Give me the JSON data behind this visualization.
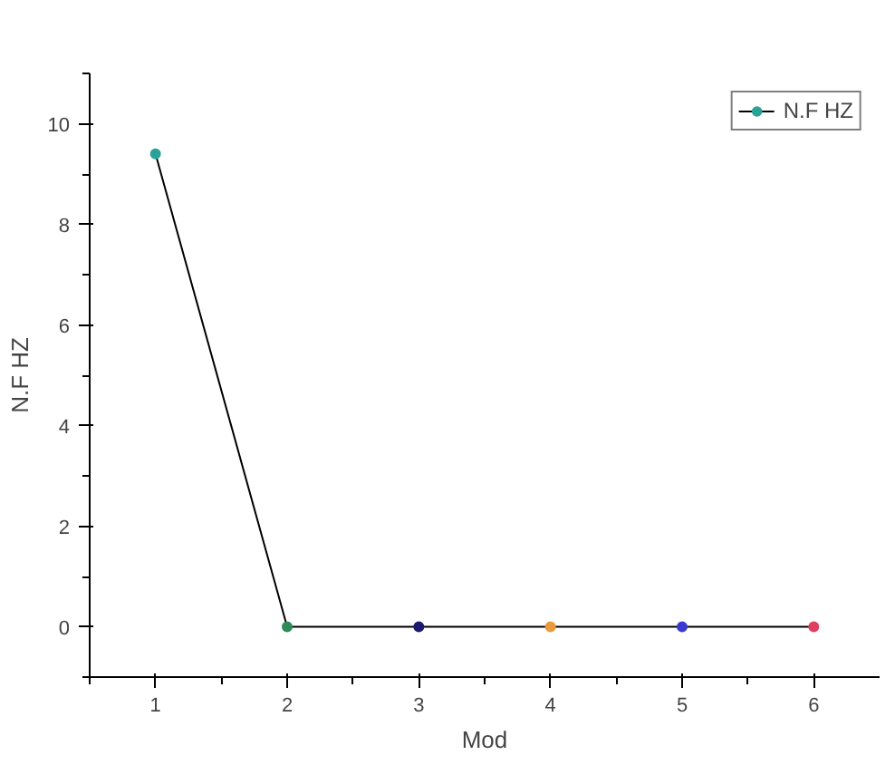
{
  "chart_data": {
    "type": "line",
    "xlabel": "Mod",
    "ylabel": "N.F HZ",
    "x": [
      1,
      2,
      3,
      4,
      5,
      6
    ],
    "series": [
      {
        "name": "N.F HZ",
        "color": "#000000",
        "values": [
          9.4,
          0,
          0,
          0,
          0,
          0
        ],
        "colors": [
          "#2aa198",
          "#2e8b57",
          "#1a1a6e",
          "#e89a3c",
          "#3a3ad0",
          "#e04060"
        ]
      }
    ],
    "xlim": [
      0.5,
      6.5
    ],
    "ylim": [
      -1,
      11
    ],
    "xticks": [
      1,
      2,
      3,
      4,
      5,
      6
    ],
    "yticks": [
      0,
      2,
      4,
      6,
      8,
      10
    ],
    "marker": "circle",
    "legend": "top right",
    "grid": false
  }
}
